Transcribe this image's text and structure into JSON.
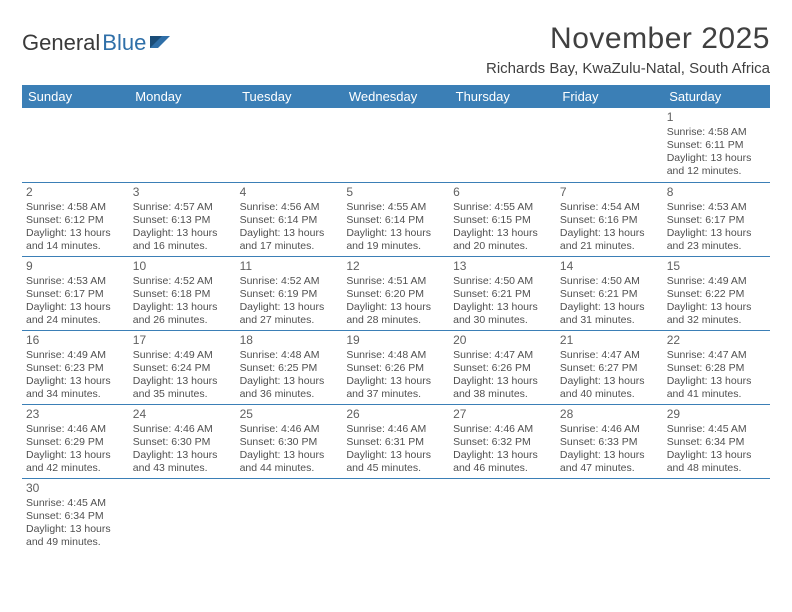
{
  "logo": {
    "part1": "General",
    "part2": "Blue"
  },
  "title": "November 2025",
  "location": "Richards Bay, KwaZulu-Natal, South Africa",
  "colors": {
    "header_bg": "#3b7fb6",
    "header_fg": "#ffffff",
    "text": "#404040",
    "cell_border": "#3b7fb6"
  },
  "weekdays": [
    "Sunday",
    "Monday",
    "Tuesday",
    "Wednesday",
    "Thursday",
    "Friday",
    "Saturday"
  ],
  "weeks": [
    [
      null,
      null,
      null,
      null,
      null,
      null,
      {
        "n": "1",
        "sr": "4:58 AM",
        "ss": "6:11 PM",
        "dl": "13 hours and 12 minutes."
      }
    ],
    [
      {
        "n": "2",
        "sr": "4:58 AM",
        "ss": "6:12 PM",
        "dl": "13 hours and 14 minutes."
      },
      {
        "n": "3",
        "sr": "4:57 AM",
        "ss": "6:13 PM",
        "dl": "13 hours and 16 minutes."
      },
      {
        "n": "4",
        "sr": "4:56 AM",
        "ss": "6:14 PM",
        "dl": "13 hours and 17 minutes."
      },
      {
        "n": "5",
        "sr": "4:55 AM",
        "ss": "6:14 PM",
        "dl": "13 hours and 19 minutes."
      },
      {
        "n": "6",
        "sr": "4:55 AM",
        "ss": "6:15 PM",
        "dl": "13 hours and 20 minutes."
      },
      {
        "n": "7",
        "sr": "4:54 AM",
        "ss": "6:16 PM",
        "dl": "13 hours and 21 minutes."
      },
      {
        "n": "8",
        "sr": "4:53 AM",
        "ss": "6:17 PM",
        "dl": "13 hours and 23 minutes."
      }
    ],
    [
      {
        "n": "9",
        "sr": "4:53 AM",
        "ss": "6:17 PM",
        "dl": "13 hours and 24 minutes."
      },
      {
        "n": "10",
        "sr": "4:52 AM",
        "ss": "6:18 PM",
        "dl": "13 hours and 26 minutes."
      },
      {
        "n": "11",
        "sr": "4:52 AM",
        "ss": "6:19 PM",
        "dl": "13 hours and 27 minutes."
      },
      {
        "n": "12",
        "sr": "4:51 AM",
        "ss": "6:20 PM",
        "dl": "13 hours and 28 minutes."
      },
      {
        "n": "13",
        "sr": "4:50 AM",
        "ss": "6:21 PM",
        "dl": "13 hours and 30 minutes."
      },
      {
        "n": "14",
        "sr": "4:50 AM",
        "ss": "6:21 PM",
        "dl": "13 hours and 31 minutes."
      },
      {
        "n": "15",
        "sr": "4:49 AM",
        "ss": "6:22 PM",
        "dl": "13 hours and 32 minutes."
      }
    ],
    [
      {
        "n": "16",
        "sr": "4:49 AM",
        "ss": "6:23 PM",
        "dl": "13 hours and 34 minutes."
      },
      {
        "n": "17",
        "sr": "4:49 AM",
        "ss": "6:24 PM",
        "dl": "13 hours and 35 minutes."
      },
      {
        "n": "18",
        "sr": "4:48 AM",
        "ss": "6:25 PM",
        "dl": "13 hours and 36 minutes."
      },
      {
        "n": "19",
        "sr": "4:48 AM",
        "ss": "6:26 PM",
        "dl": "13 hours and 37 minutes."
      },
      {
        "n": "20",
        "sr": "4:47 AM",
        "ss": "6:26 PM",
        "dl": "13 hours and 38 minutes."
      },
      {
        "n": "21",
        "sr": "4:47 AM",
        "ss": "6:27 PM",
        "dl": "13 hours and 40 minutes."
      },
      {
        "n": "22",
        "sr": "4:47 AM",
        "ss": "6:28 PM",
        "dl": "13 hours and 41 minutes."
      }
    ],
    [
      {
        "n": "23",
        "sr": "4:46 AM",
        "ss": "6:29 PM",
        "dl": "13 hours and 42 minutes."
      },
      {
        "n": "24",
        "sr": "4:46 AM",
        "ss": "6:30 PM",
        "dl": "13 hours and 43 minutes."
      },
      {
        "n": "25",
        "sr": "4:46 AM",
        "ss": "6:30 PM",
        "dl": "13 hours and 44 minutes."
      },
      {
        "n": "26",
        "sr": "4:46 AM",
        "ss": "6:31 PM",
        "dl": "13 hours and 45 minutes."
      },
      {
        "n": "27",
        "sr": "4:46 AM",
        "ss": "6:32 PM",
        "dl": "13 hours and 46 minutes."
      },
      {
        "n": "28",
        "sr": "4:46 AM",
        "ss": "6:33 PM",
        "dl": "13 hours and 47 minutes."
      },
      {
        "n": "29",
        "sr": "4:45 AM",
        "ss": "6:34 PM",
        "dl": "13 hours and 48 minutes."
      }
    ],
    [
      {
        "n": "30",
        "sr": "4:45 AM",
        "ss": "6:34 PM",
        "dl": "13 hours and 49 minutes."
      },
      null,
      null,
      null,
      null,
      null,
      null
    ]
  ],
  "labels": {
    "sunrise": "Sunrise:",
    "sunset": "Sunset:",
    "daylight": "Daylight:"
  }
}
